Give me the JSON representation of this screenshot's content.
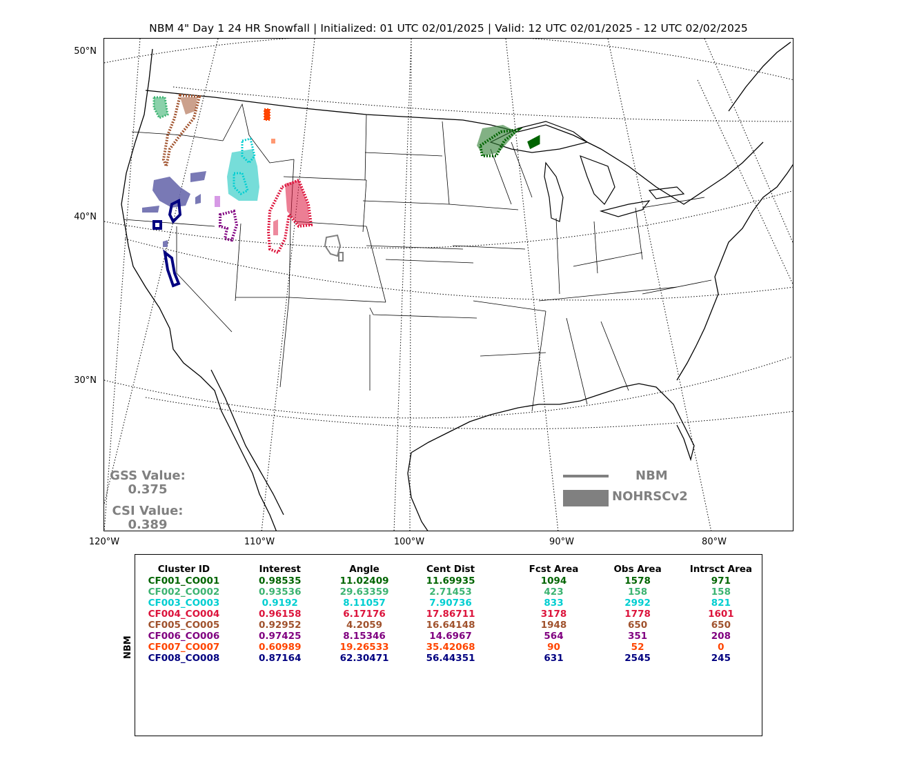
{
  "title": "NBM 4\" Day 1 24 HR Snowfall | Initialized: 01 UTC 02/01/2025 | Valid: 12 UTC 02/01/2025 - 12 UTC 02/02/2025",
  "lat_labels": [
    "50°N",
    "40°N",
    "30°N"
  ],
  "lon_labels": [
    "120°W",
    "110°W",
    "100°W",
    "90°W",
    "80°W"
  ],
  "scores": {
    "gss_label": "GSS Value:",
    "gss_value": "0.375",
    "csi_label": "CSI Value:",
    "csi_value": "0.389",
    "color": "#808080"
  },
  "legend": {
    "forecast_label": "NBM",
    "observed_label": "NOHRSCv2",
    "color": "#808080"
  },
  "table": {
    "model_label": "NBM",
    "headers": [
      "Cluster ID",
      "Interest",
      "Angle",
      "Cent Dist",
      "Fcst Area",
      "Obs Area",
      "Intrsct Area"
    ],
    "rows": [
      {
        "color": "#006400",
        "cells": [
          "CF001_CO001",
          "0.98535",
          "11.02409",
          "11.69935",
          "1094",
          "1578",
          "971"
        ]
      },
      {
        "color": "#3cb371",
        "cells": [
          "CF002_CO002",
          "0.93536",
          "29.63359",
          "2.71453",
          "423",
          "158",
          "158"
        ]
      },
      {
        "color": "#00ced1",
        "cells": [
          "CF003_CO003",
          "0.9192",
          "8.11057",
          "7.90736",
          "833",
          "2992",
          "821"
        ]
      },
      {
        "color": "#dc143c",
        "cells": [
          "CF004_CO004",
          "0.96158",
          "6.17176",
          "17.86711",
          "3178",
          "1778",
          "1601"
        ]
      },
      {
        "color": "#a0522d",
        "cells": [
          "CF005_CO005",
          "0.92952",
          "4.2059",
          "16.64148",
          "1948",
          "650",
          "650"
        ]
      },
      {
        "color": "#800080",
        "cells": [
          "CF006_CO006",
          "0.97425",
          "8.15346",
          "14.6967",
          "564",
          "351",
          "208"
        ]
      },
      {
        "color": "#ff4500",
        "cells": [
          "CF007_CO007",
          "0.60989",
          "19.26533",
          "35.42068",
          "90",
          "52",
          "0"
        ]
      },
      {
        "color": "#000080",
        "cells": [
          "CF008_CO008",
          "0.87164",
          "62.30471",
          "56.44351",
          "631",
          "2545",
          "245"
        ]
      }
    ]
  },
  "objects": [
    {
      "id": "CF001_CO001",
      "color": "#006400"
    },
    {
      "id": "CF002_CO002",
      "color": "#3cb371"
    },
    {
      "id": "CF003_CO003",
      "color": "#00ced1"
    },
    {
      "id": "CF004_CO004",
      "color": "#dc143c"
    },
    {
      "id": "CF005_CO005",
      "color": "#a0522d"
    },
    {
      "id": "CF006_CO006",
      "color": "#800080"
    },
    {
      "id": "CF007_CO007",
      "color": "#ff4500"
    },
    {
      "id": "CF008_CO008",
      "color": "#000080"
    },
    {
      "id": "observed-only",
      "color": "#6a6aad"
    },
    {
      "id": "unmatched-forecast",
      "color": "#808080"
    }
  ]
}
